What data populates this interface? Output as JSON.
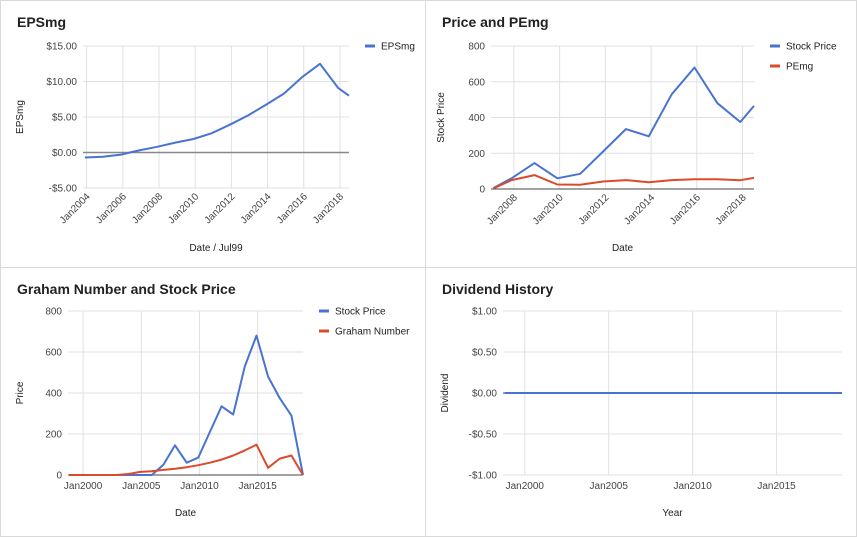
{
  "chart_data": [
    {
      "type": "line",
      "title": "EPSmg",
      "xlabel": "Date / Jul99",
      "ylabel": "EPSmg",
      "ylim": [
        -5,
        15
      ],
      "xlim": [
        2003.8,
        2018.5
      ],
      "yticks": [
        15,
        10,
        5,
        0,
        -5
      ],
      "ytick_labels": [
        "$15.00",
        "$10.00",
        "$5.00",
        "$0.00",
        "-$5.00"
      ],
      "xticks": [
        2004,
        2006,
        2008,
        2010,
        2012,
        2014,
        2016,
        2018
      ],
      "xtick_labels": [
        "Jan2004",
        "Jan2006",
        "Jan2008",
        "Jan2010",
        "Jan2012",
        "Jan2014",
        "Jan2016",
        "Jan2018"
      ],
      "xtick_rotate": true,
      "grid": true,
      "zero_line": true,
      "legend": "right",
      "series": [
        {
          "name": "EPSmg",
          "color": "#4a73d1",
          "x": [
            2003.9,
            2004.9,
            2005.9,
            2006.9,
            2007.9,
            2008.9,
            2009.9,
            2010.9,
            2011.9,
            2012.9,
            2013.9,
            2014.9,
            2015.9,
            2016.9,
            2017.9,
            2018.5
          ],
          "y": [
            -0.7,
            -0.6,
            -0.3,
            0.3,
            0.8,
            1.4,
            1.9,
            2.7,
            3.9,
            5.2,
            6.7,
            8.3,
            10.6,
            12.5,
            9.1,
            8.0
          ]
        }
      ]
    },
    {
      "type": "line",
      "title": "Price and PEmg",
      "xlabel": "Date",
      "ylabel": "Stock Price",
      "ylim": [
        0,
        800
      ],
      "xlim": [
        2007,
        2018.5
      ],
      "yticks": [
        800,
        600,
        400,
        200,
        0
      ],
      "ytick_labels": [
        "800",
        "600",
        "400",
        "200",
        "0"
      ],
      "xticks": [
        2008,
        2010,
        2012,
        2014,
        2016,
        2018
      ],
      "xtick_labels": [
        "Jan2008",
        "Jan2010",
        "Jan2012",
        "Jan2014",
        "Jan2016",
        "Jan2018"
      ],
      "xtick_rotate": true,
      "grid": true,
      "legend": "right",
      "series": [
        {
          "name": "Stock Price",
          "color": "#4a73d1",
          "x": [
            2007.1,
            2007.9,
            2008.9,
            2009.9,
            2010.9,
            2011.9,
            2012.9,
            2013.9,
            2014.9,
            2015.9,
            2016.9,
            2017.9,
            2018.5
          ],
          "y": [
            5,
            60,
            145,
            60,
            85,
            210,
            335,
            295,
            530,
            680,
            480,
            375,
            465
          ]
        },
        {
          "name": "PEmg",
          "color": "#dc4a2c",
          "x": [
            2007.1,
            2007.9,
            2008.9,
            2009.9,
            2010.9,
            2011.9,
            2012.9,
            2013.9,
            2014.9,
            2015.9,
            2016.9,
            2017.9,
            2018.5
          ],
          "y": [
            3,
            50,
            78,
            25,
            24,
            42,
            50,
            38,
            50,
            55,
            55,
            49,
            62
          ]
        }
      ]
    },
    {
      "type": "line",
      "title": "Graham Number and Stock Price",
      "xlabel": "Date",
      "ylabel": "Price",
      "ylim": [
        0,
        800
      ],
      "xlim": [
        1998.7,
        2018.9
      ],
      "yticks": [
        800,
        600,
        400,
        200,
        0
      ],
      "ytick_labels": [
        "800",
        "600",
        "400",
        "200",
        "0"
      ],
      "xticks": [
        2000,
        2005,
        2010,
        2015
      ],
      "xtick_labels": [
        "Jan2000",
        "Jan2005",
        "Jan2010",
        "Jan2015"
      ],
      "xtick_rotate": false,
      "grid": true,
      "legend": "right",
      "series": [
        {
          "name": "Stock Price",
          "color": "#4a73d1",
          "x": [
            1998.8,
            1999.9,
            2000.9,
            2001.9,
            2002.9,
            2003.9,
            2004.9,
            2005.9,
            2006.9,
            2007.9,
            2008.9,
            2009.9,
            2010.9,
            2011.9,
            2012.9,
            2013.9,
            2014.9,
            2015.9,
            2016.9,
            2017.9,
            2018.9
          ],
          "y": [
            0,
            0,
            0,
            0,
            0,
            0,
            0,
            0,
            50,
            145,
            60,
            85,
            210,
            335,
            295,
            530,
            680,
            480,
            375,
            290,
            0
          ]
        },
        {
          "name": "Graham Number",
          "color": "#dc4a2c",
          "x": [
            1998.8,
            1999.9,
            2000.9,
            2001.9,
            2002.9,
            2003.9,
            2004.9,
            2005.9,
            2006.9,
            2007.9,
            2008.9,
            2009.9,
            2010.9,
            2011.9,
            2012.9,
            2013.9,
            2014.9,
            2015.9,
            2016.9,
            2017.9,
            2018.9
          ],
          "y": [
            0,
            0,
            0,
            0,
            0,
            5,
            15,
            18,
            25,
            30,
            38,
            48,
            60,
            75,
            95,
            120,
            148,
            35,
            80,
            95,
            0
          ]
        }
      ]
    },
    {
      "type": "line",
      "title": "Dividend History",
      "xlabel": "Year",
      "ylabel": "Dividend",
      "ylim": [
        -1,
        1
      ],
      "xlim": [
        1998.7,
        2018.9
      ],
      "yticks": [
        1,
        0.5,
        0,
        -0.5,
        -1
      ],
      "ytick_labels": [
        "$1.00",
        "$0.50",
        "$0.00",
        "-$0.50",
        "-$1.00"
      ],
      "xticks": [
        2000,
        2005,
        2010,
        2015
      ],
      "xtick_labels": [
        "Jan2000",
        "Jan2005",
        "Jan2010",
        "Jan2015"
      ],
      "xtick_rotate": false,
      "grid": true,
      "legend": "none",
      "series": [
        {
          "name": "",
          "color": "#4a73d1",
          "x": [
            1998.8,
            2018.9
          ],
          "y": [
            0,
            0
          ]
        }
      ]
    }
  ]
}
